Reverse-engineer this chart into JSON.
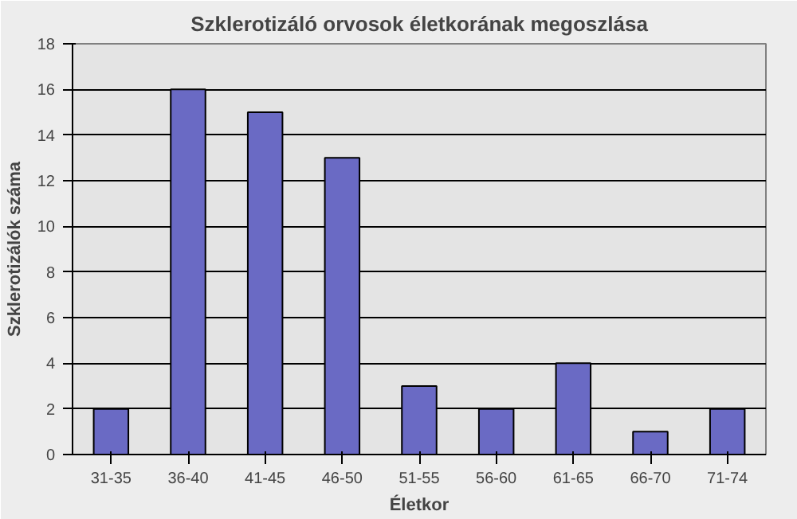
{
  "chart_data": {
    "type": "bar",
    "title": "Szklerotizáló orvosok életkorának megoszlása",
    "xlabel": "Életkor",
    "ylabel": "Szklerotizálók száma",
    "categories": [
      "31-35",
      "36-40",
      "41-45",
      "46-50",
      "51-55",
      "56-60",
      "61-65",
      "66-70",
      "71-74"
    ],
    "values": [
      2,
      16,
      15,
      13,
      3,
      2,
      4,
      1,
      2
    ],
    "color": "#6a6ac4",
    "ylim": [
      0,
      18
    ],
    "yticks": [
      0,
      2,
      4,
      6,
      8,
      10,
      12,
      14,
      16,
      18
    ],
    "grid": "y"
  }
}
